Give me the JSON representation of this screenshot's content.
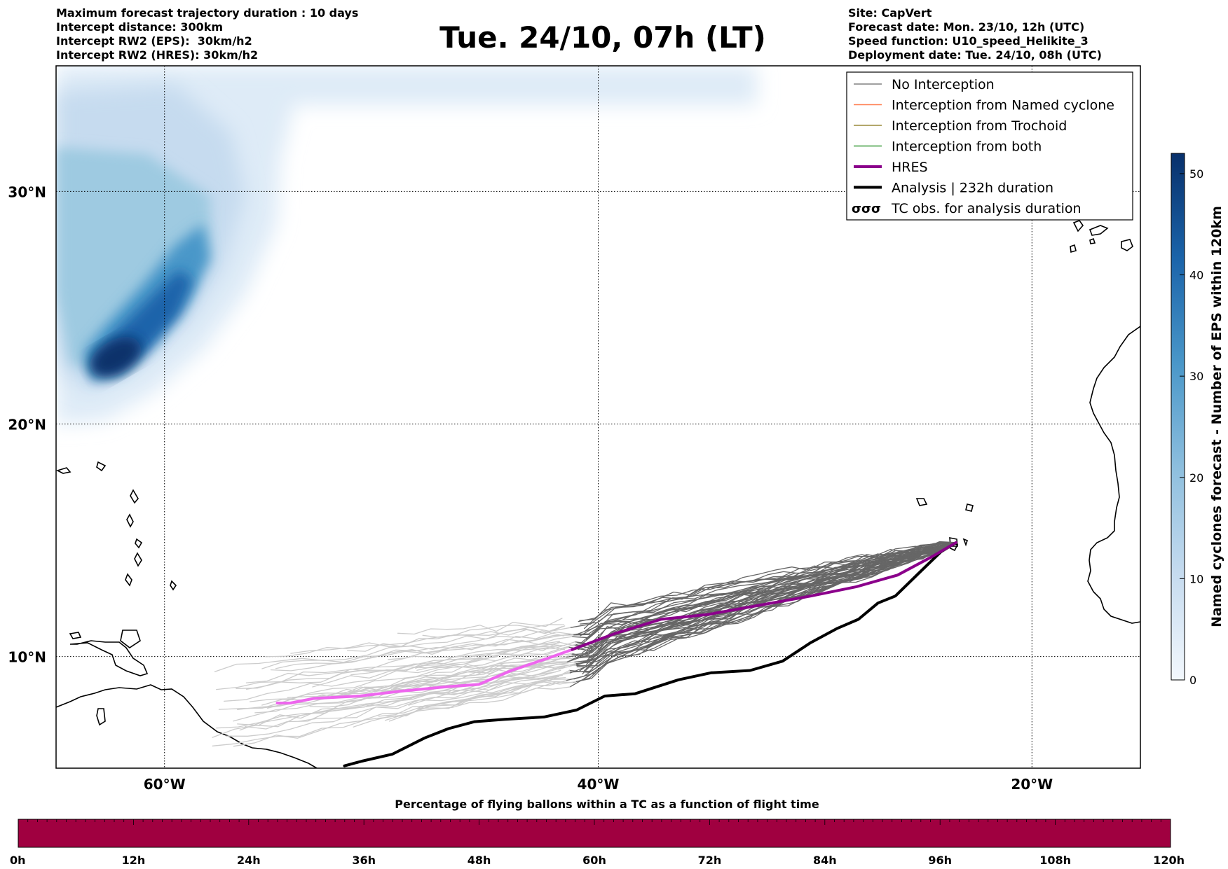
{
  "header": {
    "left_lines": [
      "Maximum forecast trajectory duration : 10 days",
      "Intercept distance: 300km",
      "Intercept RW2 (EPS):  30km/h2",
      "Intercept RW2 (HRES): 30km/h2"
    ],
    "title": "Tue. 24/10, 07h (LT)",
    "right_lines": [
      "Site: CapVert",
      "Forecast date: Mon. 23/10, 12h (UTC)",
      "Speed function: U10_speed_Helikite_3",
      "Deployment date: Tue. 24/10, 08h (UTC)"
    ]
  },
  "map": {
    "lon_range": [
      -65,
      -15
    ],
    "lat_range": [
      5.2,
      35.4
    ],
    "lon_ticks": [
      {
        "lon": -60,
        "label": "60°W"
      },
      {
        "lon": -40,
        "label": "40°W"
      },
      {
        "lon": -20,
        "label": "20°W"
      }
    ],
    "lat_ticks": [
      {
        "lat": 30,
        "label": "30°N"
      },
      {
        "lat": 20,
        "label": "20°N"
      },
      {
        "lat": 10,
        "label": "10°N"
      }
    ],
    "launch_site": {
      "lon": -23.5,
      "lat": 14.9
    }
  },
  "legend": [
    {
      "label": "No Interception",
      "color": "#808080",
      "style": "thin"
    },
    {
      "label": "Interception from Named cyclone",
      "color": "#ff7f50",
      "style": "thin"
    },
    {
      "label": "Interception from Trochoid",
      "color": "#9a8a3a",
      "style": "thin"
    },
    {
      "label": "Interception from both",
      "color": "#3a9a3a",
      "style": "thin"
    },
    {
      "label": "HRES",
      "color": "#8b008b",
      "style": "thick"
    },
    {
      "label": "Analysis | 232h duration",
      "color": "#000000",
      "style": "thick"
    },
    {
      "label": "TC obs. for analysis duration",
      "color": "#000000",
      "style": "tc-symbol"
    }
  ],
  "colorbar": {
    "label": "Named cyclones forecast - Number of EPS within 120km",
    "ticks": [
      "0",
      "10",
      "20",
      "30",
      "40",
      "50"
    ],
    "max": 52,
    "colors": [
      "#f3f8fd",
      "#08306b"
    ]
  },
  "trajectories": {
    "hres": [
      [
        -23.5,
        14.9
      ],
      [
        -24.6,
        14.3
      ],
      [
        -26.2,
        13.5
      ],
      [
        -28.1,
        13.0
      ],
      [
        -30.2,
        12.6
      ],
      [
        -32.6,
        12.2
      ],
      [
        -35.0,
        11.8
      ],
      [
        -37.1,
        11.6
      ],
      [
        -39.2,
        11.0
      ],
      [
        -41.2,
        10.3
      ],
      [
        -42.4,
        9.9
      ],
      [
        -44.0,
        9.4
      ],
      [
        -45.5,
        8.8
      ],
      [
        -47.0,
        8.7
      ],
      [
        -49.2,
        8.5
      ],
      [
        -51.0,
        8.3
      ],
      [
        -53.1,
        8.2
      ],
      [
        -54.2,
        8.0
      ],
      [
        -54.8,
        8.0
      ]
    ],
    "analysis": [
      [
        -23.5,
        14.9
      ],
      [
        -24.2,
        14.5
      ],
      [
        -25.2,
        13.6
      ],
      [
        -26.3,
        12.6
      ],
      [
        -27.1,
        12.3
      ],
      [
        -28.0,
        11.6
      ],
      [
        -29.0,
        11.2
      ],
      [
        -30.2,
        10.6
      ],
      [
        -31.5,
        9.8
      ],
      [
        -33.0,
        9.4
      ],
      [
        -34.8,
        9.3
      ],
      [
        -36.3,
        9.0
      ],
      [
        -38.3,
        8.4
      ],
      [
        -39.7,
        8.3
      ],
      [
        -41.0,
        7.7
      ],
      [
        -42.5,
        7.4
      ],
      [
        -44.3,
        7.3
      ],
      [
        -45.7,
        7.2
      ],
      [
        -46.9,
        6.9
      ],
      [
        -48.0,
        6.5
      ],
      [
        -49.5,
        5.8
      ],
      [
        -50.9,
        5.5
      ],
      [
        -51.7,
        5.3
      ]
    ],
    "ensemble_count": 50
  },
  "bottom_bar": {
    "title": "Percentage of flying ballons within a TC as a function of flight time",
    "ticks": [
      "0h",
      "12h",
      "24h",
      "36h",
      "48h",
      "60h",
      "72h",
      "84h",
      "96h",
      "108h",
      "120h"
    ],
    "color": "#a00040"
  }
}
